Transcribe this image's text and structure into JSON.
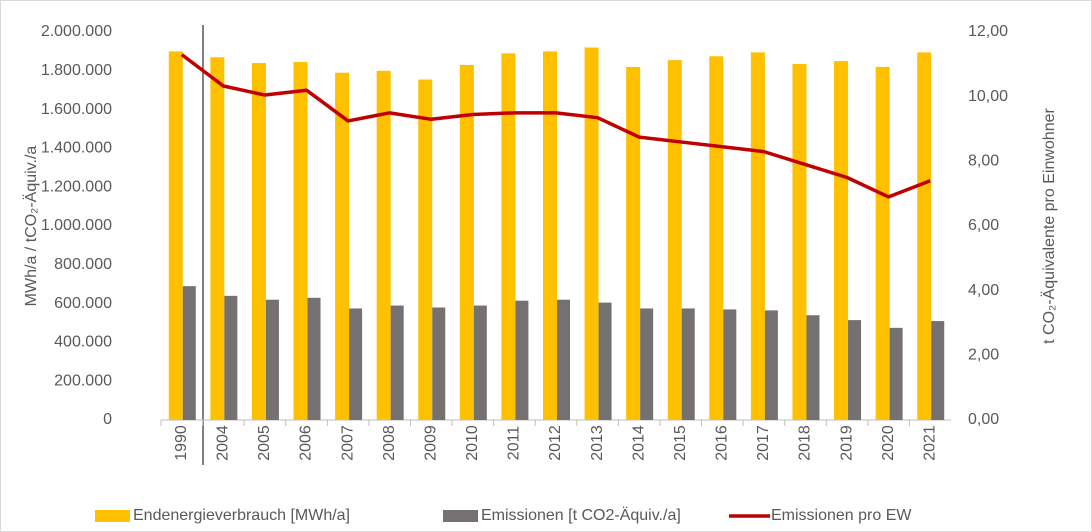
{
  "chart_data": {
    "type": "bar_line",
    "y_label": "MWh/a   /   tCO₂-Äquiv./a",
    "y2_label": "t CO₂-Äquivalente pro Einwohner",
    "categories": [
      "1990",
      "2004",
      "2005",
      "2006",
      "2007",
      "2008",
      "2009",
      "2010",
      "2011",
      "2012",
      "2013",
      "2014",
      "2015",
      "2016",
      "2017",
      "2018",
      "2019",
      "2020",
      "2021"
    ],
    "series": [
      {
        "name": "Endenergieverbrauch [MWh/a]",
        "color": "#ffc000",
        "kind": "bar",
        "values": [
          1900000,
          1870000,
          1840000,
          1845000,
          1790000,
          1800000,
          1755000,
          1830000,
          1890000,
          1900000,
          1920000,
          1820000,
          1855000,
          1875000,
          1895000,
          1835000,
          1850000,
          1820000,
          1895000
        ]
      },
      {
        "name": "Emissionen [t CO2-Äquiv./a]",
        "color": "#767171",
        "kind": "bar",
        "values": [
          690000,
          640000,
          620000,
          630000,
          575000,
          590000,
          580000,
          590000,
          615000,
          620000,
          605000,
          575000,
          575000,
          570000,
          565000,
          540000,
          515000,
          475000,
          510000
        ]
      },
      {
        "name": "Emissionen pro EW",
        "color": "#c00000",
        "kind": "line",
        "axis": "y2",
        "values": [
          11.3,
          10.33,
          10.05,
          10.2,
          9.25,
          9.5,
          9.3,
          9.45,
          9.5,
          9.5,
          9.35,
          8.75,
          8.6,
          8.45,
          8.3,
          7.9,
          7.5,
          6.9,
          7.4
        ]
      }
    ],
    "ylim": [
      0,
      2000000
    ],
    "yticks": [
      0,
      {
        "value": 200000,
        "label": "200.000"
      },
      {
        "value": 400000,
        "label": "400.000"
      },
      {
        "value": 600000,
        "label": "600.000"
      },
      {
        "value": 800000,
        "label": "800.000"
      },
      {
        "value": 1000000,
        "label": "1.000.000"
      },
      {
        "value": 1200000,
        "label": "1.200.000"
      },
      {
        "value": 1400000,
        "label": "1.400.000"
      },
      {
        "value": 1600000,
        "label": "1.600.000"
      },
      {
        "value": 1800000,
        "label": "1.800.000"
      },
      {
        "value": 2000000,
        "label": "2.000.000"
      }
    ],
    "y2lim": [
      0,
      12
    ],
    "y2ticks": [
      {
        "value": 0,
        "label": "0,00"
      },
      {
        "value": 2,
        "label": "2,00"
      },
      {
        "value": 4,
        "label": "4,00"
      },
      {
        "value": 6,
        "label": "6,00"
      },
      {
        "value": 8,
        "label": "8,00"
      },
      {
        "value": 10,
        "label": "10,00"
      },
      {
        "value": 12,
        "label": "12,00"
      }
    ],
    "legend": "bottom"
  }
}
